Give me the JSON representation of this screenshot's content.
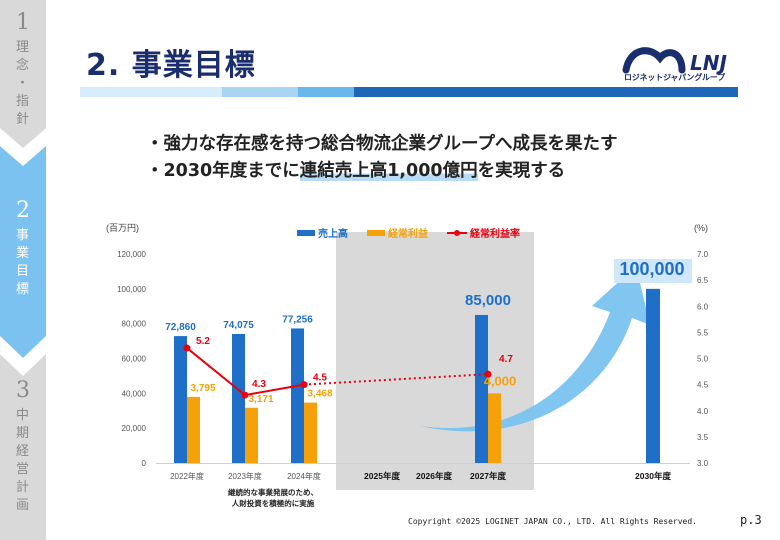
{
  "rail": {
    "steps": [
      {
        "num": "1",
        "text": "理念・指針"
      },
      {
        "num": "2",
        "text": "事業目標"
      },
      {
        "num": "3",
        "text": "中期経営計画"
      }
    ]
  },
  "header": {
    "title": "2.  事業目標",
    "logo_text": "LNJ",
    "logo_sub": "ロジネットジャパングループ"
  },
  "bullets": {
    "line1": "・強力な存在感を持つ総合物流企業グループへ成長を果たす",
    "line2_pre": "・2030年度までに",
    "line2_hl": "連結売上高1,000億円",
    "line2_post": "を実現する"
  },
  "colors": {
    "sales": "#1f6fc8",
    "profit": "#f5a20a",
    "rate": "#e8000f",
    "shade": "#d9d9d9",
    "arrow": "#79c3f0",
    "title": "#1a2e6e"
  },
  "chart_data": {
    "type": "bar",
    "left_unit": "(百万円)",
    "right_unit": "(%)",
    "legend": [
      "売上高",
      "経常利益",
      "経常利益率"
    ],
    "left_ticks": [
      "0",
      "20,000",
      "40,000",
      "60,000",
      "80,000",
      "100,000",
      "120,000"
    ],
    "right_ticks": [
      "3.0",
      "3.5",
      "4.0",
      "4.5",
      "5.0",
      "5.5",
      "6.0",
      "6.5",
      "7.0"
    ],
    "ylim": [
      0,
      120000
    ],
    "y2lim": [
      3.0,
      7.0
    ],
    "categories": [
      "2022年度",
      "2023年度",
      "2024年度",
      "2025年度",
      "2026年度",
      "2027年度",
      "2030年度"
    ],
    "sales": [
      {
        "cat": "2022年度",
        "value": 72860,
        "label": "72,860"
      },
      {
        "cat": "2023年度",
        "value": 74075,
        "label": "74,075"
      },
      {
        "cat": "2024年度",
        "value": 77256,
        "label": "77,256"
      },
      {
        "cat": "2027年度",
        "value": 85000,
        "label": "85,000"
      },
      {
        "cat": "2030年度",
        "value": 100000,
        "label": "100,000"
      }
    ],
    "profit": [
      {
        "cat": "2022年度",
        "value": 3795,
        "label": "3,795"
      },
      {
        "cat": "2023年度",
        "value": 3171,
        "label": "3,171"
      },
      {
        "cat": "2024年度",
        "value": 3468,
        "label": "3,468"
      },
      {
        "cat": "2027年度",
        "value": 4000,
        "label": "4,000"
      }
    ],
    "rate": [
      {
        "cat": "2022年度",
        "value": 5.2,
        "label": "5.2"
      },
      {
        "cat": "2023年度",
        "value": 4.3,
        "label": "4.3"
      },
      {
        "cat": "2024年度",
        "value": 4.5,
        "label": "4.5"
      },
      {
        "cat": "2027年度",
        "value": 4.7,
        "label": "4.7"
      }
    ],
    "note_line1": "継続的な事業発展のため、",
    "note_line2": "人財投資を積極的に実施"
  },
  "footer": {
    "copyright": "Copyright ©2025 LOGINET JAPAN CO., LTD. All Rights Reserved.",
    "page": "p.3"
  }
}
